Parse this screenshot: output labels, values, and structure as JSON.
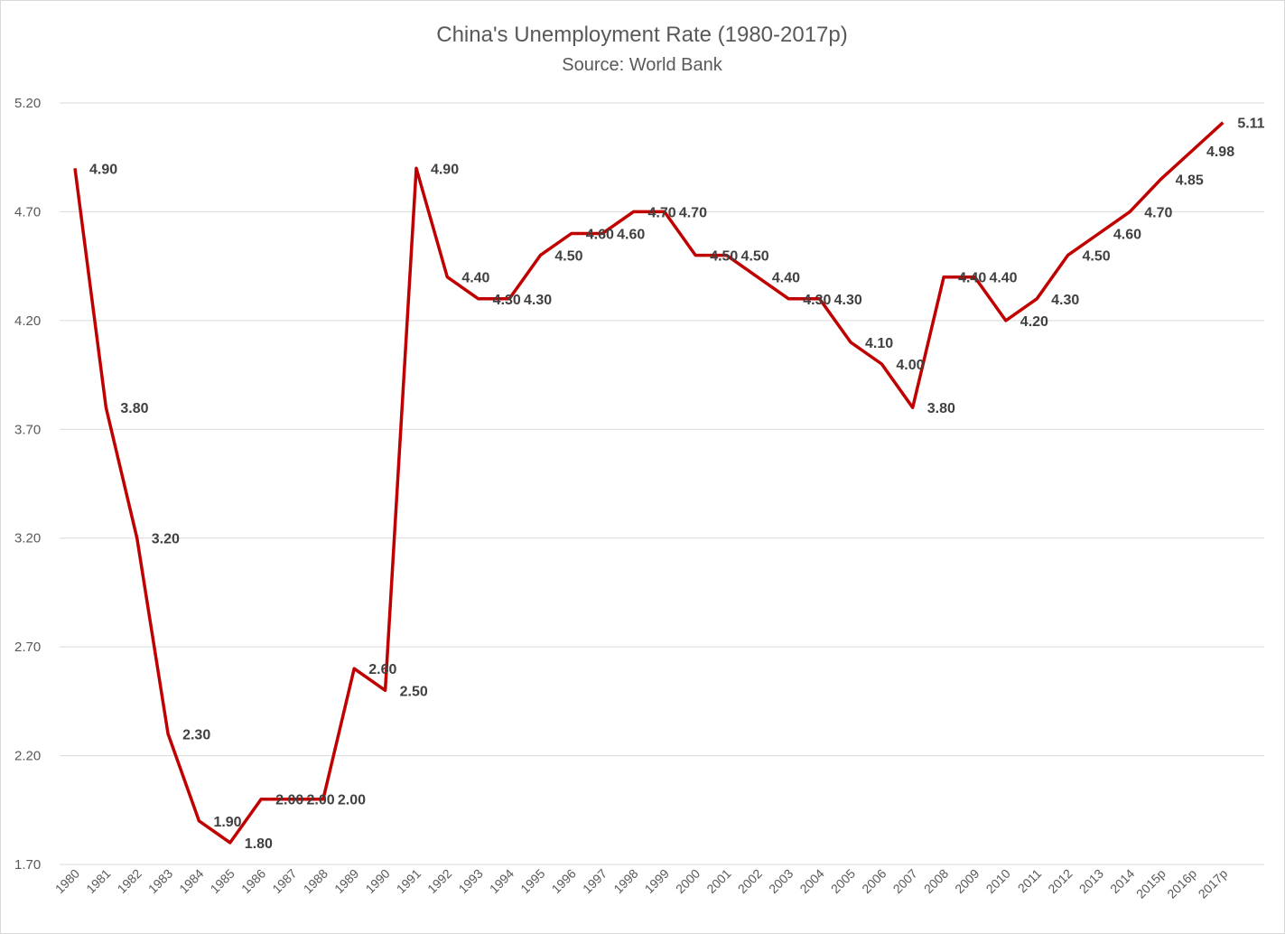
{
  "chart_data": {
    "type": "line",
    "title": "China's Unemployment Rate  (1980-2017p)",
    "subtitle": "Source: World Bank",
    "xlabel": "",
    "ylabel": "",
    "ylim": [
      1.7,
      5.2
    ],
    "yticks": [
      "5.20",
      "4.70",
      "4.20",
      "3.70",
      "3.20",
      "2.70",
      "2.20",
      "1.70"
    ],
    "grid": true,
    "legend": "none",
    "line_color": "#c00000",
    "categories": [
      "1980",
      "1981",
      "1982",
      "1983",
      "1984",
      "1985",
      "1986",
      "1987",
      "1988",
      "1989",
      "1990",
      "1991",
      "1992",
      "1993",
      "1994",
      "1995",
      "1996",
      "1997",
      "1998",
      "1999",
      "2000",
      "2001",
      "2002",
      "2003",
      "2004",
      "2005",
      "2006",
      "2007",
      "2008",
      "2009",
      "2010",
      "2011",
      "2012",
      "2013",
      "2014",
      "2015p",
      "2016p",
      "2017p"
    ],
    "series": [
      {
        "values": [
          4.9,
          3.8,
          3.2,
          2.3,
          1.9,
          1.8,
          2.0,
          2.0,
          2.0,
          2.6,
          2.5,
          4.9,
          4.4,
          4.3,
          4.3,
          4.5,
          4.6,
          4.6,
          4.7,
          4.7,
          4.5,
          4.5,
          4.4,
          4.3,
          4.3,
          4.1,
          4.0,
          3.8,
          4.4,
          4.4,
          4.2,
          4.3,
          4.5,
          4.6,
          4.7,
          4.85,
          4.98,
          5.11
        ],
        "labels": [
          "4.90",
          "3.80",
          "3.20",
          "2.30",
          "1.90",
          "1.80",
          "2.00",
          "2.00",
          "2.00",
          "2.60",
          "2.50",
          "4.90",
          "4.40",
          "4.30",
          "4.30",
          "4.50",
          "4.60",
          "4.60",
          "4.70",
          "4.70",
          "4.50",
          "4.50",
          "4.40",
          "4.30",
          "4.30",
          "4.10",
          "4.00",
          "3.80",
          "4.40",
          "4.40",
          "4.20",
          "4.30",
          "4.50",
          "4.60",
          "4.70",
          "4.85",
          "4.98",
          "5.11"
        ]
      }
    ]
  }
}
